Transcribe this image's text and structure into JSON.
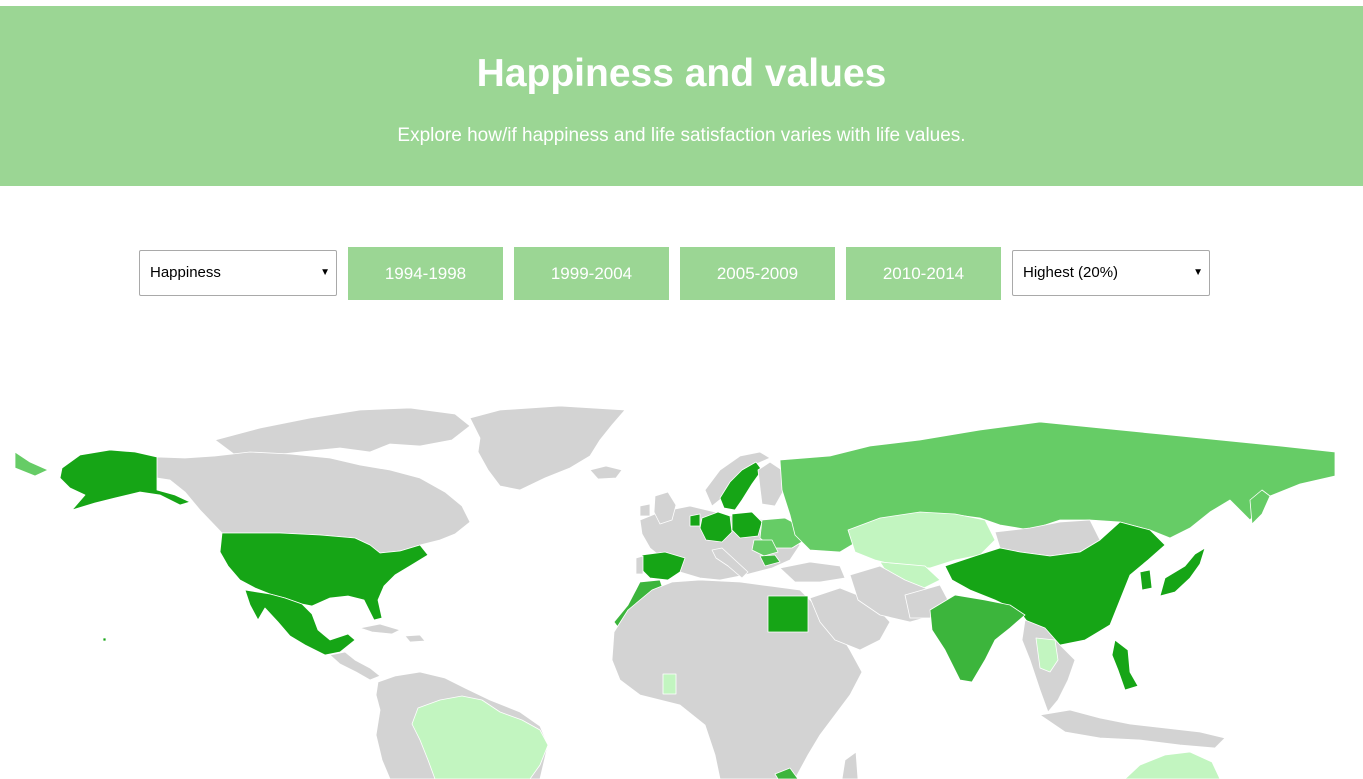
{
  "header": {
    "title": "Happiness and values",
    "subtitle": "Explore how/if happiness and life satisfaction varies with life values."
  },
  "controls": {
    "variable_select": {
      "value": "Happiness"
    },
    "periods": [
      "1994-1998",
      "1999-2004",
      "2005-2009",
      "2010-2014"
    ],
    "filter_select": {
      "value": "Highest (20%)"
    }
  },
  "map": {
    "colors": {
      "no_data": "#d3d3d3",
      "level_1": "#c2f5c0",
      "level_2": "#66cc66",
      "level_3": "#3cb53c",
      "level_4": "#16a516",
      "borders": "#ffffff"
    }
  }
}
